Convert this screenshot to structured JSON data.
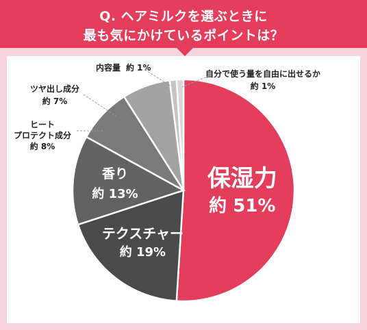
{
  "title": {
    "line1": "Q. ヘアミルクを選ぶときに",
    "line2": "最も気にかけているポイントは？"
  },
  "chart_data": {
    "type": "pie",
    "slices": [
      {
        "label": "保湿力",
        "value_text": "約 51%",
        "value": 51,
        "color": "#e33d5b"
      },
      {
        "label": "テクスチャー",
        "value_text": "約 19%",
        "value": 19,
        "color": "#4a4a4a"
      },
      {
        "label": "香り",
        "value_text": "約 13%",
        "value": 13,
        "color": "#626262"
      },
      {
        "label": "ヒート\nプロテクト成分",
        "value_text": "約 8%",
        "value": 8,
        "color": "#7a7a7a"
      },
      {
        "label": "ツヤ出し成分",
        "value_text": "約 7%",
        "value": 7,
        "color": "#a2a2a2"
      },
      {
        "label": "内容量",
        "value_text": "約 1%",
        "value": 1,
        "color": "#c4c4c4"
      },
      {
        "label": "自分で使う量を自由に出せるか",
        "value_text": "約 1%",
        "value": 1,
        "color": "#d8d8d8"
      }
    ]
  }
}
